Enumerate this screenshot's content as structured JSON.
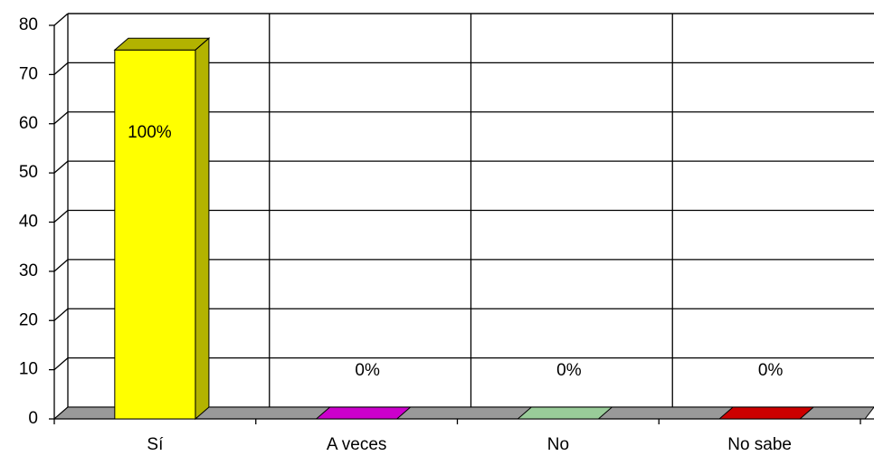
{
  "chart_data": {
    "type": "bar3d",
    "categories": [
      "Sí",
      "A veces",
      "No",
      "No sabe"
    ],
    "values": [
      75,
      0,
      0,
      0
    ],
    "value_labels": [
      "100%",
      "0%",
      "0%",
      "0%"
    ],
    "colors": [
      "#ffff00",
      "#cc00cc",
      "#99cc99",
      "#cc0000"
    ],
    "ylim": [
      0,
      80
    ],
    "yticks": [
      0,
      10,
      20,
      30,
      40,
      50,
      60,
      70,
      80
    ],
    "grid": true
  }
}
